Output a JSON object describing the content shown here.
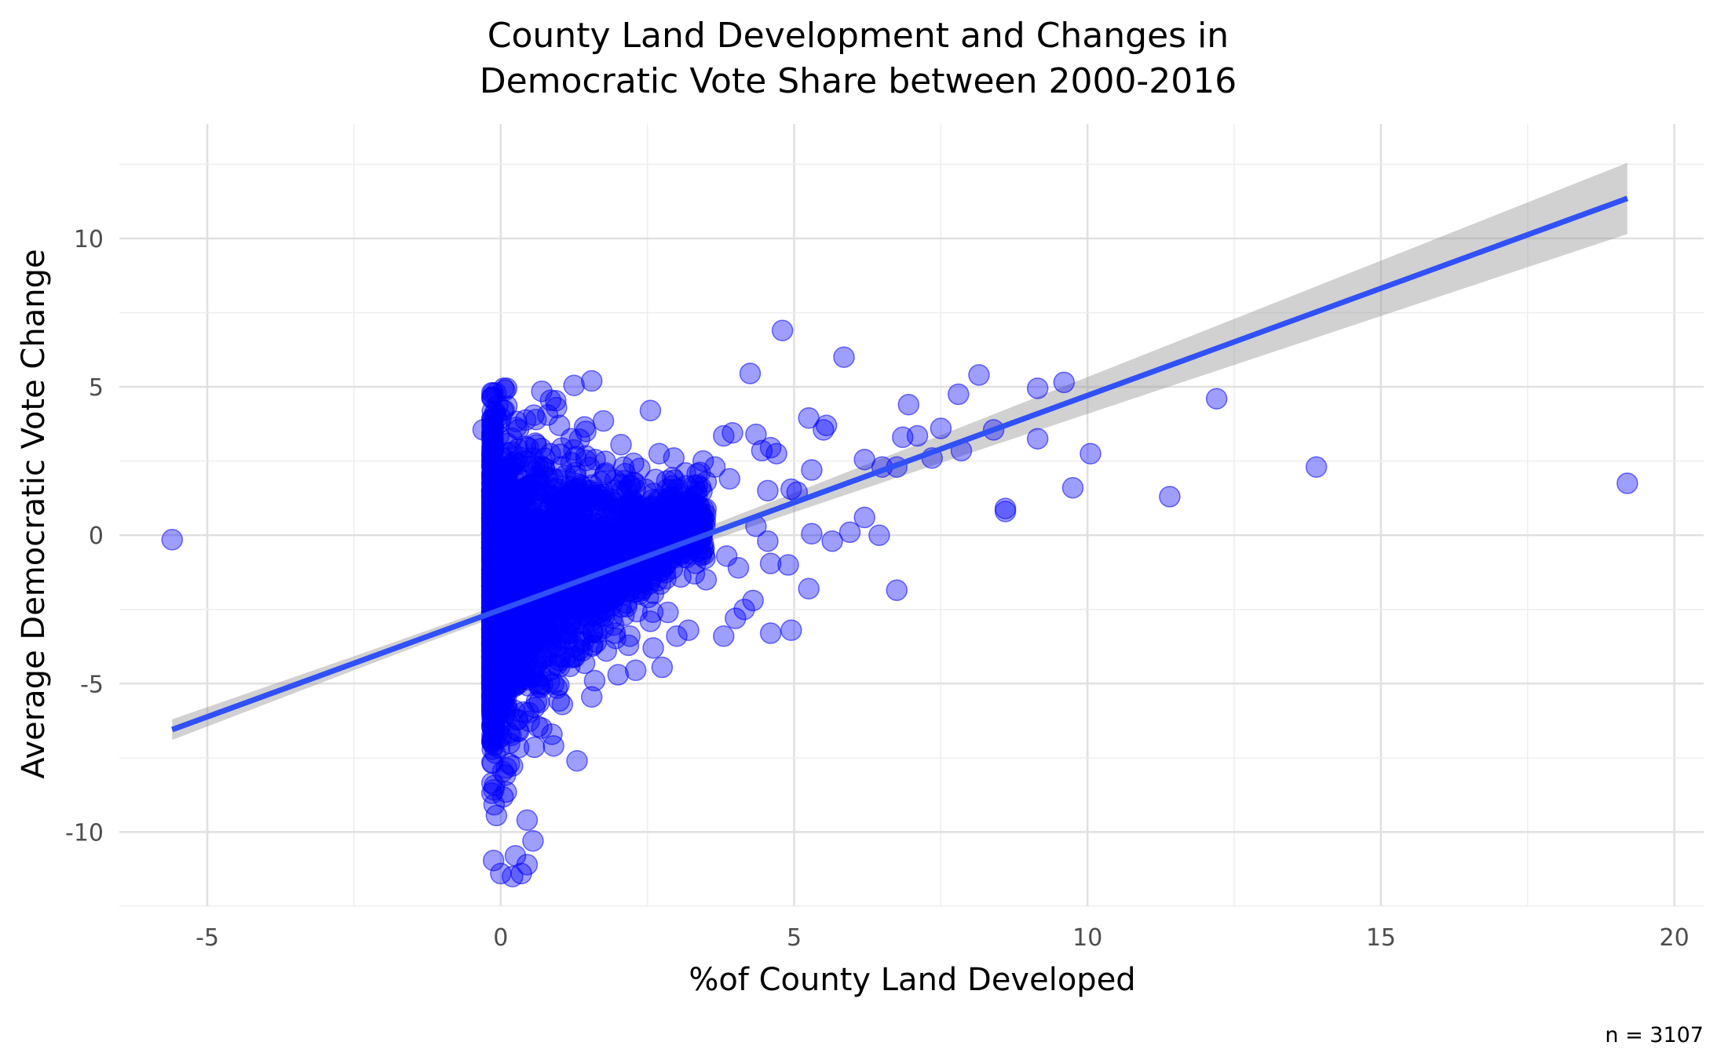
{
  "chart_data": {
    "type": "scatter",
    "title": [
      "County Land Development and Changes in",
      "Democratic Vote Share between 2000-2016"
    ],
    "xlabel": "%of County Land Developed",
    "ylabel": "Average Democratic Vote Change",
    "caption": "n = 3107",
    "xlim": [
      -6.5,
      20.5
    ],
    "ylim": [
      -12.5,
      12.8
    ],
    "x_ticks": [
      -5,
      0,
      5,
      10,
      15,
      20
    ],
    "y_ticks": [
      -10,
      -5,
      0,
      5,
      10
    ],
    "x_tick_labels": [
      "-5",
      "0",
      "5",
      "10",
      "15",
      "20"
    ],
    "y_tick_labels": [
      "-10",
      "-5",
      "0",
      "5",
      "10"
    ],
    "grid": true,
    "point_color": "#0000ff",
    "line_color": "#3050f8",
    "band_color": "#999999",
    "regression": {
      "x_start": -5.6,
      "y_start": -6.55,
      "x_end": 19.2,
      "y_end": 11.35,
      "ci_start": [
        -6.9,
        -6.2
      ],
      "ci_mid": [
        -0.6,
        -0.3
      ],
      "ci_end": [
        10.2,
        12.6
      ]
    },
    "outliers": [
      [
        -5.6,
        -0.15
      ],
      [
        4.8,
        6.9
      ],
      [
        5.85,
        6.0
      ],
      [
        4.25,
        5.45
      ],
      [
        1.55,
        5.2
      ],
      [
        1.25,
        5.05
      ],
      [
        2.55,
        4.2
      ],
      [
        5.25,
        3.95
      ],
      [
        5.5,
        3.55
      ],
      [
        5.55,
        3.7
      ],
      [
        6.95,
        4.4
      ],
      [
        7.8,
        4.75
      ],
      [
        8.15,
        5.4
      ],
      [
        9.15,
        4.95
      ],
      [
        9.6,
        5.15
      ],
      [
        12.2,
        4.6
      ],
      [
        8.4,
        3.55
      ],
      [
        7.5,
        3.6
      ],
      [
        7.1,
        3.35
      ],
      [
        6.85,
        3.3
      ],
      [
        9.15,
        3.25
      ],
      [
        10.05,
        2.75
      ],
      [
        7.85,
        2.85
      ],
      [
        7.35,
        2.6
      ],
      [
        6.5,
        2.3
      ],
      [
        6.2,
        2.55
      ],
      [
        6.75,
        2.3
      ],
      [
        9.75,
        1.6
      ],
      [
        11.4,
        1.3
      ],
      [
        13.9,
        2.3
      ],
      [
        19.2,
        1.75
      ],
      [
        8.6,
        0.9
      ],
      [
        8.6,
        0.8
      ],
      [
        6.2,
        0.6
      ],
      [
        6.45,
        0.0
      ],
      [
        5.65,
        -0.2
      ],
      [
        5.3,
        0.05
      ],
      [
        5.95,
        0.1
      ],
      [
        6.75,
        -1.85
      ],
      [
        5.25,
        -1.8
      ],
      [
        4.95,
        -3.2
      ],
      [
        4.6,
        -3.3
      ],
      [
        4.3,
        -2.2
      ],
      [
        4.15,
        -2.5
      ],
      [
        4.0,
        -2.8
      ],
      [
        3.8,
        -3.4
      ],
      [
        5.3,
        2.2
      ],
      [
        4.6,
        2.95
      ],
      [
        4.45,
        2.85
      ],
      [
        4.35,
        3.4
      ],
      [
        3.95,
        3.45
      ],
      [
        3.8,
        3.35
      ],
      [
        4.7,
        2.75
      ],
      [
        4.55,
        1.5
      ],
      [
        4.95,
        1.55
      ],
      [
        5.05,
        1.45
      ],
      [
        4.9,
        -1.0
      ],
      [
        4.6,
        -0.95
      ],
      [
        4.55,
        -0.2
      ],
      [
        3.2,
        -3.2
      ],
      [
        3.0,
        -3.4
      ],
      [
        2.75,
        -4.45
      ],
      [
        2.3,
        -4.55
      ],
      [
        2.0,
        -4.7
      ],
      [
        1.6,
        -4.9
      ],
      [
        1.55,
        -5.45
      ],
      [
        1.05,
        -5.7
      ],
      [
        1.3,
        -7.6
      ],
      [
        0.9,
        -7.1
      ],
      [
        0.55,
        -10.3
      ],
      [
        0.45,
        -11.1
      ],
      [
        0.35,
        -11.4
      ],
      [
        0.0,
        -11.4
      ],
      [
        0.2,
        -11.5
      ],
      [
        1.75,
        3.85
      ],
      [
        1.0,
        3.7
      ],
      [
        0.6,
        3.9
      ],
      [
        0.7,
        4.85
      ],
      [
        0.85,
        4.55
      ],
      [
        0.1,
        4.95
      ],
      [
        0.05,
        4.95
      ],
      [
        -0.3,
        3.55
      ],
      [
        0.95,
        4.3
      ],
      [
        0.8,
        4.05
      ],
      [
        1.45,
        3.5
      ],
      [
        2.05,
        3.05
      ],
      [
        2.7,
        2.75
      ],
      [
        3.15,
        2.1
      ],
      [
        3.65,
        2.3
      ],
      [
        2.95,
        2.6
      ],
      [
        3.45,
        2.5
      ],
      [
        3.5,
        1.8
      ],
      [
        3.1,
        1.1
      ],
      [
        2.9,
        -0.8
      ],
      [
        3.3,
        -1.3
      ],
      [
        3.5,
        -1.5
      ],
      [
        3.85,
        -0.7
      ],
      [
        4.05,
        -1.1
      ],
      [
        4.35,
        0.3
      ],
      [
        3.9,
        1.9
      ],
      [
        2.55,
        -2.9
      ],
      [
        2.85,
        -2.6
      ],
      [
        2.2,
        -3.4
      ],
      [
        2.1,
        -2.7
      ],
      [
        1.8,
        -3.9
      ],
      [
        2.6,
        -3.8
      ],
      [
        0.7,
        -6.5
      ],
      [
        0.25,
        -10.8
      ],
      [
        0.45,
        -9.6
      ]
    ],
    "cloud": {
      "seed": 20161108,
      "count": 3000,
      "x_range": [
        -0.15,
        3.5
      ],
      "y_center_at_zero": -1.8,
      "y_spread_at_zero": 5.2
    }
  }
}
